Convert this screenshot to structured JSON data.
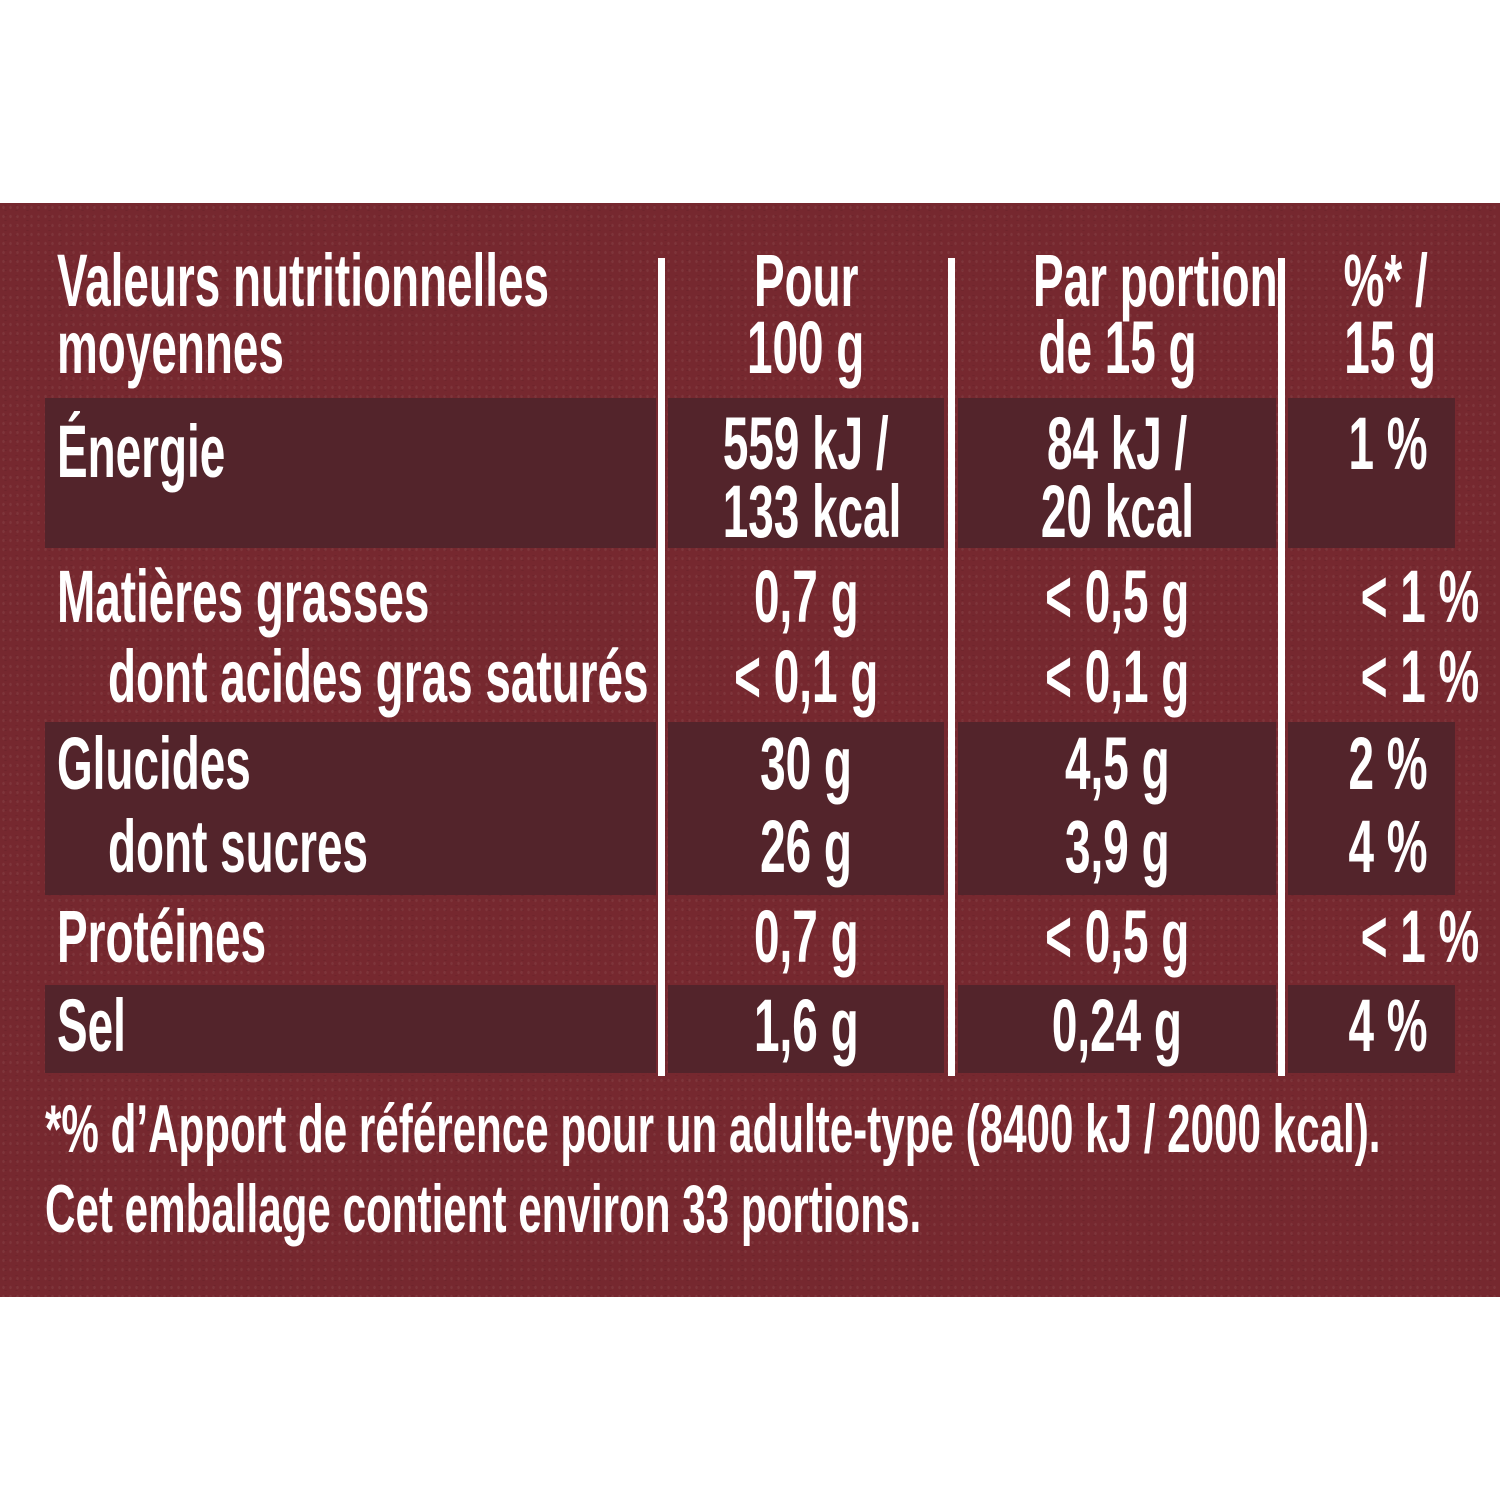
{
  "colors": {
    "panel": "#76282f",
    "band": "#53242b",
    "text": "#ffffff"
  },
  "header": {
    "label_1": "Valeurs nutritionnelles",
    "label_2": "moyennes",
    "col1_1": "Pour",
    "col1_2": "100 g",
    "col2_1": "Par portion",
    "col2_2": "de 15 g",
    "col3_1": "%* /",
    "col3_2": "15 g"
  },
  "rows": [
    {
      "label": "Énergie",
      "v100_1": "559 kJ /",
      "v100_2": "133 kcal",
      "vport_1": "84 kJ /",
      "vport_2": "20 kcal",
      "pct": "1 %"
    },
    {
      "label": "Matières grasses",
      "v100": "0,7 g",
      "vport": "< 0,5 g",
      "pct": "< 1 %"
    },
    {
      "label": "dont acides gras saturés",
      "v100": "< 0,1 g",
      "vport": "< 0,1 g",
      "pct": "< 1 %"
    },
    {
      "label": "Glucides",
      "v100": "30 g",
      "vport": "4,5 g",
      "pct": "2 %"
    },
    {
      "label": "dont sucres",
      "v100": "26 g",
      "vport": "3,9 g",
      "pct": "4 %"
    },
    {
      "label": "Protéines",
      "v100": "0,7 g",
      "vport": "< 0,5 g",
      "pct": "< 1 %"
    },
    {
      "label": "Sel",
      "v100": "1,6 g",
      "vport": "0,24 g",
      "pct": "4 %"
    }
  ],
  "footer": {
    "line1": "*% d’Apport de référence pour un adulte-type (8400 kJ / 2000 kcal).",
    "line2": "Cet emballage contient environ 33 portions."
  }
}
